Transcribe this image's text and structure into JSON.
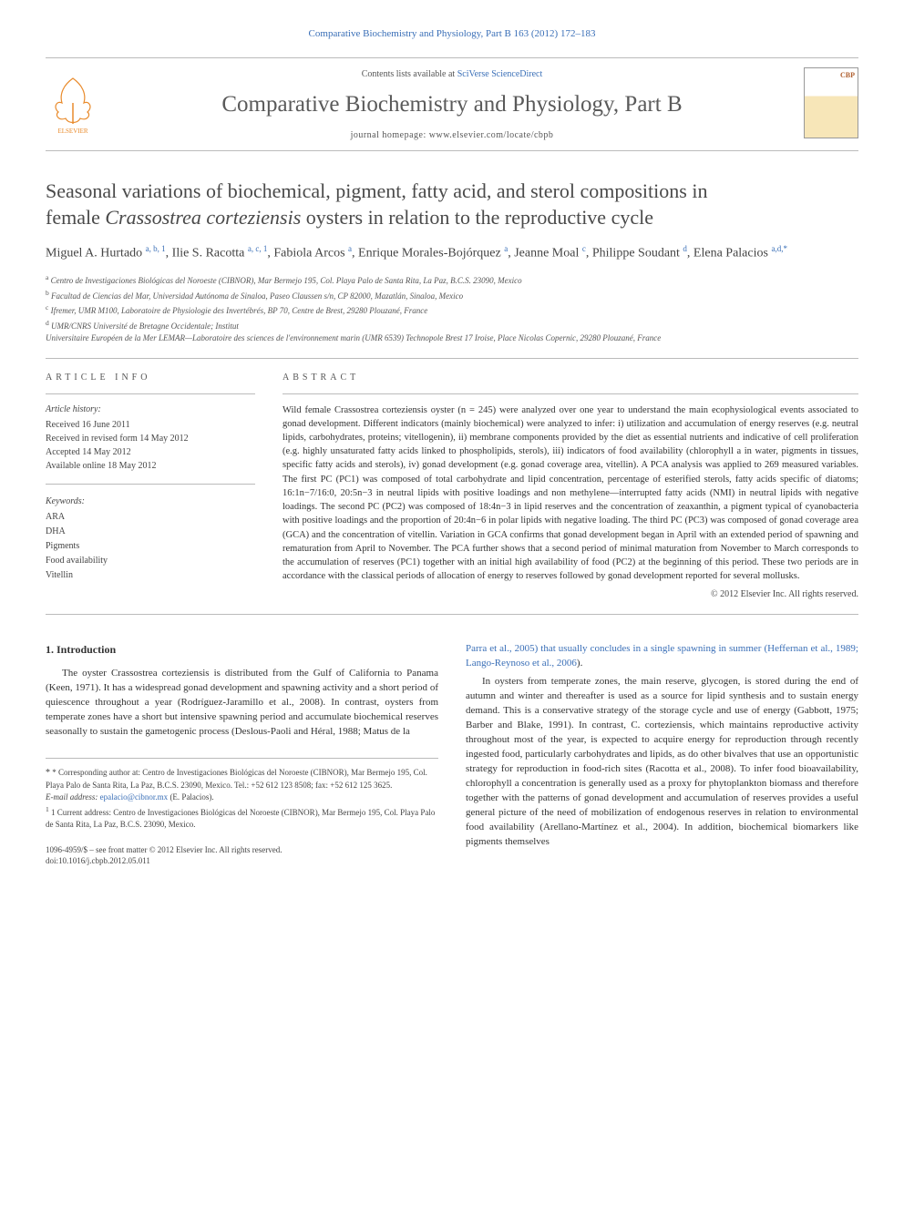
{
  "top_link": "Comparative Biochemistry and Physiology, Part B 163 (2012) 172–183",
  "masthead": {
    "contents_prefix": "Contents lists available at ",
    "contents_link": "SciVerse ScienceDirect",
    "journal_title": "Comparative Biochemistry and Physiology, Part B",
    "homepage_prefix": "journal homepage: ",
    "homepage": "www.elsevier.com/locate/cbpb",
    "publisher": "ELSEVIER"
  },
  "article": {
    "title_line1": "Seasonal variations of biochemical, pigment, fatty acid, and sterol compositions in",
    "title_line2_pre": "female ",
    "title_line2_italic": "Crassostrea corteziensis",
    "title_line2_post": " oysters in relation to the reproductive cycle",
    "authors_html": "Miguel A. Hurtado <sup>a, b, 1</sup>, Ilie S. Racotta <sup>a, c, 1</sup>, Fabiola Arcos <sup>a</sup>, Enrique Morales-Bojórquez <sup>a</sup>, Jeanne Moal <sup>c</sup>, Philippe Soudant <sup>d</sup>, Elena Palacios <sup>a,d,</sup><sup class=\"star-sup\">*</sup>",
    "affiliations": {
      "a": "Centro de Investigaciones Biológicas del Noroeste (CIBNOR), Mar Bermejo 195, Col. Playa Palo de Santa Rita, La Paz, B.C.S. 23090, Mexico",
      "b": "Facultad de Ciencias del Mar, Universidad Autónoma de Sinaloa, Paseo Claussen s/n, CP 82000, Mazatlán, Sinaloa, Mexico",
      "c": "Ifremer, UMR M100, Laboratoire de Physiologie des Invertébrés, BP 70, Centre de Brest, 29280 Plouzané, France",
      "d": "UMR/CNRS Université de Bretagne Occidentale; Institut",
      "d2": "Universitaire Européen de la Mer LEMAR—Laboratoire des sciences de l'environnement marin (UMR 6539) Technopole Brest 17 Iroise, Place Nicolas Copernic, 29280 Plouzané, France"
    }
  },
  "article_info": {
    "heading": "article info",
    "history_label": "Article history:",
    "received": "Received 16 June 2011",
    "revised": "Received in revised form 14 May 2012",
    "accepted": "Accepted 14 May 2012",
    "online": "Available online 18 May 2012",
    "keywords_label": "Keywords:",
    "keywords": [
      "ARA",
      "DHA",
      "Pigments",
      "Food availability",
      "Vitellin"
    ]
  },
  "abstract": {
    "heading": "abstract",
    "text": "Wild female Crassostrea corteziensis oyster (n = 245) were analyzed over one year to understand the main ecophysiological events associated to gonad development. Different indicators (mainly biochemical) were analyzed to infer: i) utilization and accumulation of energy reserves (e.g. neutral lipids, carbohydrates, proteins; vitellogenin), ii) membrane components provided by the diet as essential nutrients and indicative of cell proliferation (e.g. highly unsaturated fatty acids linked to phospholipids, sterols), iii) indicators of food availability (chlorophyll a in water, pigments in tissues, specific fatty acids and sterols), iv) gonad development (e.g. gonad coverage area, vitellin). A PCA analysis was applied to 269 measured variables. The first PC (PC1) was composed of total carbohydrate and lipid concentration, percentage of esterified sterols, fatty acids specific of diatoms; 16:1n−7/16:0, 20:5n−3 in neutral lipids with positive loadings and non methylene—interrupted fatty acids (NMI) in neutral lipids with negative loadings. The second PC (PC2) was composed of 18:4n−3 in lipid reserves and the concentration of zeaxanthin, a pigment typical of cyanobacteria with positive loadings and the proportion of 20:4n−6 in polar lipids with negative loading. The third PC (PC3) was composed of gonad coverage area (GCA) and the concentration of vitellin. Variation in GCA confirms that gonad development began in April with an extended period of spawning and rematuration from April to November. The PCA further shows that a second period of minimal maturation from November to March corresponds to the accumulation of reserves (PC1) together with an initial high availability of food (PC2) at the beginning of this period. These two periods are in accordance with the classical periods of allocation of energy to reserves followed by gonad development reported for several mollusks.",
    "copyright": "© 2012 Elsevier Inc. All rights reserved."
  },
  "body": {
    "intro_heading": "1. Introduction",
    "left_para": "The oyster Crassostrea corteziensis is distributed from the Gulf of California to Panama (Keen, 1971). It has a widespread gonad development and spawning activity and a short period of quiescence throughout a year (Rodríguez-Jaramillo et al., 2008). In contrast, oysters from temperate zones have a short but intensive spawning period and accumulate biochemical reserves seasonally to sustain the gametogenic process (Deslous-Paoli and Héral, 1988; Matus de la",
    "right_para1_pre": "Parra et al., 2005) that usually concludes in a single spawning in summer (",
    "right_para1_cite": "Heffernan et al., 1989; Lango-Reynoso et al., 2006",
    "right_para1_post": ").",
    "right_para2": "In oysters from temperate zones, the main reserve, glycogen, is stored during the end of autumn and winter and thereafter is used as a source for lipid synthesis and to sustain energy demand. This is a conservative strategy of the storage cycle and use of energy (Gabbott, 1975; Barber and Blake, 1991). In contrast, C. corteziensis, which maintains reproductive activity throughout most of the year, is expected to acquire energy for reproduction through recently ingested food, particularly carbohydrates and lipids, as do other bivalves that use an opportunistic strategy for reproduction in food-rich sites (Racotta et al., 2008). To infer food bioavailability, chlorophyll a concentration is generally used as a proxy for phytoplankton biomass and therefore together with the patterns of gonad development and accumulation of reserves provides a useful general picture of the need of mobilization of endogenous reserves in relation to environmental food availability (Arellano-Martínez et al., 2004). In addition, biochemical biomarkers like pigments themselves"
  },
  "footnotes": {
    "corr": "* Corresponding author at: Centro de Investigaciones Biológicas del Noroeste (CIBNOR), Mar Bermejo 195, Col. Playa Palo de Santa Rita, La Paz, B.C.S. 23090, Mexico. Tel.: +52 612 123 8508; fax: +52 612 125 3625.",
    "email_label": "E-mail address: ",
    "email": "epalacio@cibnor.mx",
    "email_who": " (E. Palacios).",
    "note1": "1 Current address: Centro de Investigaciones Biológicas del Noroeste (CIBNOR), Mar Bermejo 195, Col. Playa Palo de Santa Rita, La Paz, B.C.S. 23090, Mexico."
  },
  "footer": {
    "line1": "1096-4959/$ – see front matter © 2012 Elsevier Inc. All rights reserved.",
    "line2": "doi:10.1016/j.cbpb.2012.05.011"
  },
  "colors": {
    "link": "#3a6fb7",
    "text": "#333333",
    "muted": "#555555",
    "rule": "#bbbbbb"
  }
}
